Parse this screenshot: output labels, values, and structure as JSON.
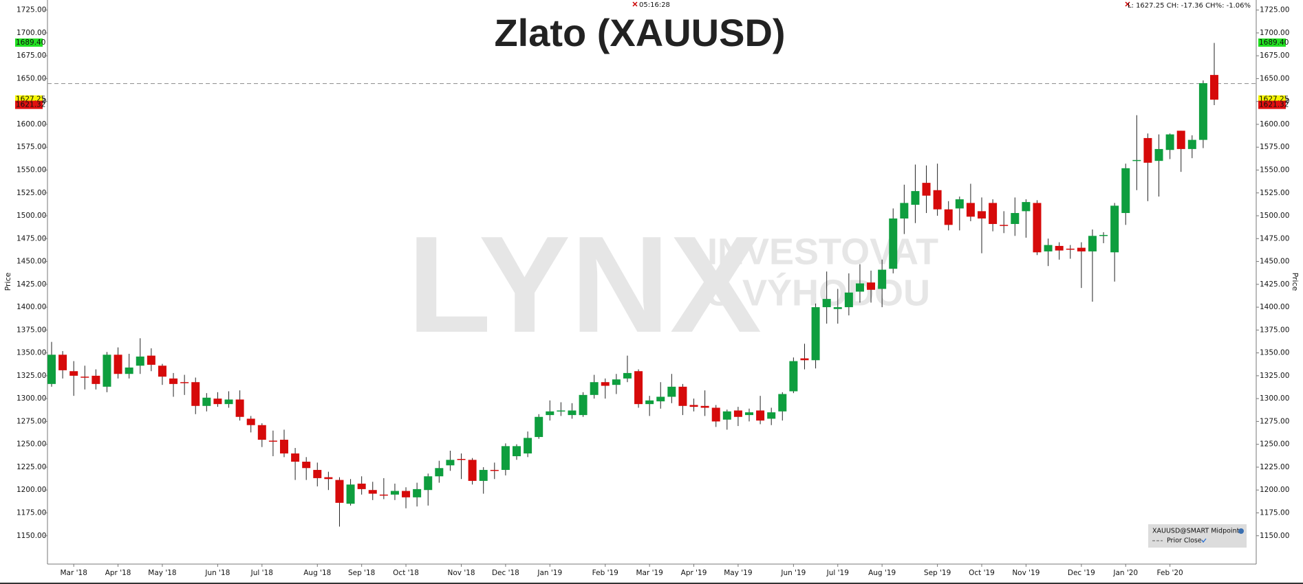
{
  "chart_data": {
    "type": "candlestick",
    "title": "Zlato (XAUUSD)",
    "time": "05:16:28",
    "quote": "L: 1627.25 CH: -17.36 CH%: -1.06%",
    "y_label": "Price",
    "watermark": [
      "LYNX",
      "INVESTOVAT",
      "S VÝHODOU"
    ],
    "categories": [
      null,
      null,
      "Mar '18",
      null,
      null,
      null,
      "Apr '18",
      null,
      null,
      null,
      "May '18",
      null,
      null,
      null,
      null,
      "Jun '18",
      null,
      null,
      null,
      "Jul '18",
      null,
      null,
      null,
      null,
      "Aug '18",
      null,
      null,
      null,
      "Sep '18",
      null,
      null,
      null,
      "Oct '18",
      null,
      null,
      null,
      null,
      "Nov '18",
      null,
      null,
      null,
      "Dec '18",
      null,
      null,
      null,
      "Jan '19",
      null,
      null,
      null,
      null,
      "Feb '19",
      null,
      null,
      null,
      "Mar '19",
      null,
      null,
      null,
      "Apr '19",
      null,
      null,
      null,
      "May '19",
      null,
      null,
      null,
      null,
      "Jun '19",
      null,
      null,
      null,
      "Jul '19",
      null,
      null,
      null,
      "Aug '19",
      null,
      null,
      null,
      null,
      "Sep '19",
      null,
      null,
      null,
      "Oct '19",
      null,
      null,
      null,
      "Nov '19",
      null,
      null,
      null,
      null,
      "Dec '19",
      null,
      null,
      null,
      "Jan '20",
      null,
      null,
      null,
      "Feb '20",
      null,
      null,
      null,
      null
    ],
    "series": [
      {
        "name": "XAUUSD@SMART Midpoint",
        "up_color": "#0e9e3e",
        "down_color": "#d60a0a",
        "open": [
          1316,
          1348,
          1330,
          1324,
          1325,
          1313,
          1348,
          1327,
          1336,
          1347,
          1336,
          1322,
          1318,
          1318,
          1292,
          1300,
          1294,
          1299,
          1278,
          1271,
          1254,
          1255,
          1240,
          1231,
          1222,
          1214,
          1211,
          1185,
          1207,
          1200,
          1195,
          1195,
          1199,
          1192,
          1200,
          1215,
          1227,
          1234,
          1233,
          1210,
          1222,
          1222,
          1237,
          1240,
          1258,
          1282,
          1286,
          1282,
          1282,
          1304,
          1318,
          1315,
          1322,
          1330,
          1294,
          1297,
          1302,
          1313,
          1293,
          1292,
          1290,
          1277,
          1287,
          1282,
          1287,
          1278,
          1286,
          1308,
          1344,
          1342,
          1400,
          1398,
          1400,
          1417,
          1427,
          1420,
          1442,
          1497,
          1512,
          1536,
          1528,
          1507,
          1508,
          1514,
          1505,
          1514,
          1490,
          1491,
          1505,
          1514,
          1461,
          1467,
          1464,
          1465,
          1461,
          1478,
          1460,
          1503,
          1560,
          1585,
          1560,
          1572,
          1593,
          1573,
          1583,
          1654
        ],
        "high": [
          1362,
          1352,
          1341,
          1336,
          1332,
          1351,
          1356,
          1349,
          1366,
          1355,
          1338,
          1328,
          1326,
          1323,
          1306,
          1307,
          1308,
          1309,
          1281,
          1273,
          1265,
          1266,
          1246,
          1236,
          1230,
          1220,
          1214,
          1212,
          1215,
          1209,
          1213,
          1207,
          1203,
          1208,
          1218,
          1232,
          1243,
          1240,
          1235,
          1225,
          1230,
          1251,
          1250,
          1264,
          1283,
          1298,
          1296,
          1295,
          1307,
          1326,
          1322,
          1327,
          1347,
          1332,
          1303,
          1318,
          1327,
          1316,
          1300,
          1309,
          1293,
          1288,
          1291,
          1289,
          1303,
          1290,
          1307,
          1345,
          1360,
          1404,
          1439,
          1420,
          1437,
          1447,
          1440,
          1452,
          1508,
          1534,
          1556,
          1555,
          1557,
          1516,
          1521,
          1535,
          1520,
          1518,
          1505,
          1520,
          1518,
          1517,
          1475,
          1471,
          1468,
          1471,
          1485,
          1482,
          1514,
          1557,
          1610,
          1590,
          1589,
          1590,
          1593,
          1588,
          1648,
          1689
        ],
        "low": [
          1313,
          1322,
          1303,
          1310,
          1310,
          1307,
          1322,
          1322,
          1327,
          1330,
          1315,
          1302,
          1304,
          1283,
          1286,
          1291,
          1290,
          1276,
          1263,
          1247,
          1237,
          1236,
          1211,
          1211,
          1204,
          1200,
          1160,
          1183,
          1195,
          1189,
          1190,
          1189,
          1180,
          1182,
          1183,
          1208,
          1221,
          1212,
          1206,
          1196,
          1212,
          1216,
          1233,
          1236,
          1256,
          1276,
          1281,
          1278,
          1280,
          1300,
          1300,
          1305,
          1318,
          1290,
          1281,
          1289,
          1295,
          1282,
          1286,
          1281,
          1269,
          1266,
          1270,
          1275,
          1272,
          1271,
          1276,
          1306,
          1332,
          1333,
          1382,
          1382,
          1391,
          1405,
          1405,
          1400,
          1437,
          1480,
          1492,
          1503,
          1500,
          1484,
          1484,
          1494,
          1459,
          1483,
          1481,
          1478,
          1476,
          1457,
          1445,
          1452,
          1453,
          1421,
          1406,
          1470,
          1428,
          1490,
          1528,
          1516,
          1521,
          1562,
          1548,
          1563,
          1574,
          1621
        ],
        "close": [
          1348,
          1331,
          1325,
          1323,
          1316,
          1348,
          1327,
          1334,
          1346,
          1337,
          1324,
          1316,
          1317,
          1292,
          1301,
          1294,
          1299,
          1280,
          1271,
          1255,
          1253,
          1240,
          1231,
          1224,
          1213,
          1212,
          1186,
          1206,
          1201,
          1196,
          1194,
          1199,
          1192,
          1201,
          1215,
          1224,
          1233,
          1233,
          1210,
          1222,
          1221,
          1248,
          1248,
          1257,
          1280,
          1286,
          1287,
          1287,
          1304,
          1318,
          1314,
          1321,
          1328,
          1294,
          1298,
          1302,
          1313,
          1292,
          1291,
          1290,
          1275,
          1286,
          1280,
          1285,
          1276,
          1285,
          1305,
          1341,
          1342,
          1400,
          1409,
          1400,
          1416,
          1426,
          1419,
          1441,
          1497,
          1514,
          1527,
          1522,
          1507,
          1490,
          1518,
          1499,
          1497,
          1491,
          1489,
          1503,
          1515,
          1460,
          1468,
          1462,
          1463,
          1461,
          1478,
          1479,
          1511,
          1552,
          1561,
          1558,
          1573,
          1589,
          1573,
          1583,
          1645,
          1627
        ]
      }
    ],
    "prior_close": {
      "name": "Prior Close",
      "value": 1644.61,
      "color": "#888888"
    },
    "price_tags": [
      {
        "value": 1689.4,
        "label": "1689.40",
        "color": "#22e022"
      },
      {
        "value": 1627.25,
        "label": "1627.25",
        "color": "#f5f500"
      },
      {
        "value": 1621.32,
        "label": "1621.32",
        "color": "#e01010"
      }
    ],
    "ylim": [
      1119,
      1736
    ],
    "yticks": [
      {
        "value": 1150,
        "label": "1150.00"
      },
      {
        "value": 1175,
        "label": "1175.00"
      },
      {
        "value": 1200,
        "label": "1200.00"
      },
      {
        "value": 1225,
        "label": "1225.00"
      },
      {
        "value": 1250,
        "label": "1250.00"
      },
      {
        "value": 1275,
        "label": "1275.00"
      },
      {
        "value": 1300,
        "label": "1300.00"
      },
      {
        "value": 1325,
        "label": "1325.00"
      },
      {
        "value": 1350,
        "label": "1350.00"
      },
      {
        "value": 1375,
        "label": "1375.00"
      },
      {
        "value": 1400,
        "label": "1400.00"
      },
      {
        "value": 1425,
        "label": "1425.00"
      },
      {
        "value": 1450,
        "label": "1450.00"
      },
      {
        "value": 1475,
        "label": "1475.00"
      },
      {
        "value": 1500,
        "label": "1500.00"
      },
      {
        "value": 1525,
        "label": "1525.00"
      },
      {
        "value": 1550,
        "label": "1550.00"
      },
      {
        "value": 1575,
        "label": "1575.00"
      },
      {
        "value": 1600,
        "label": "1600.00"
      },
      {
        "value": 1625,
        "label": "1625.00"
      },
      {
        "value": 1650,
        "label": "1650.00"
      },
      {
        "value": 1675,
        "label": "1675.00"
      },
      {
        "value": 1700,
        "label": "1700.00"
      },
      {
        "value": 1725,
        "label": "1725.00"
      }
    ],
    "grid": false
  }
}
